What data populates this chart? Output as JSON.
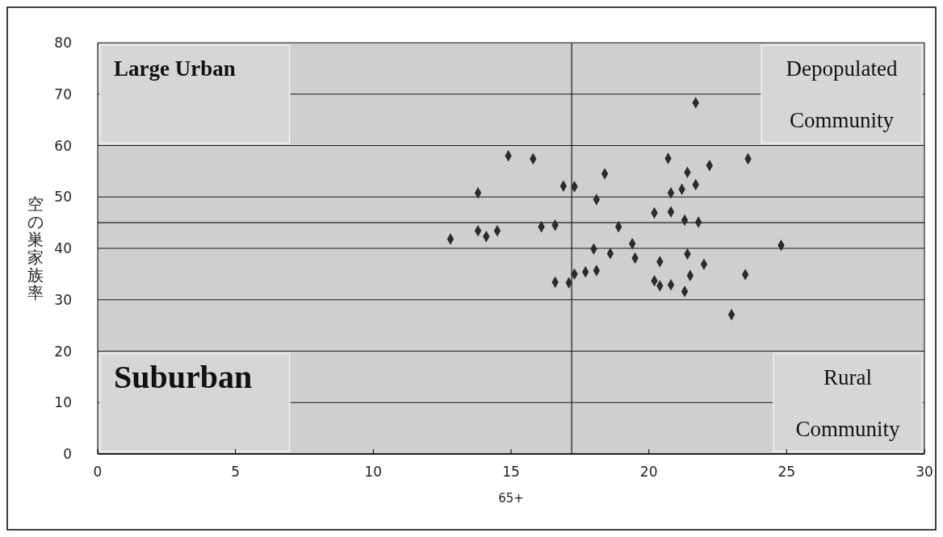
{
  "chart_data": {
    "type": "scatter",
    "xlabel": "65+",
    "ylabel": "空の巣家族率",
    "xlim": [
      0,
      30
    ],
    "xticks": [
      0,
      5,
      10,
      15,
      20,
      25,
      30
    ],
    "ylim": [
      0,
      80
    ],
    "yticks": [
      0,
      10,
      20,
      30,
      40,
      50,
      60,
      70,
      80
    ],
    "grid": "y",
    "marker": "diamond",
    "ref_lines": [
      {
        "axis": "x",
        "value": 17.2,
        "color": "#1a1a1a"
      },
      {
        "axis": "y",
        "value": 45,
        "color": "#1a1a1a"
      }
    ],
    "annotations": [
      "Large Urban",
      "Depopulated Community",
      "Suburban",
      "Rural Community"
    ],
    "series": [
      {
        "color": "#2b2b2b",
        "x": [
          21.7,
          20.7,
          23.6,
          22.2,
          21.4,
          21.7,
          21.2,
          20.8,
          20.2,
          20.8,
          21.3,
          21.8,
          19.4,
          24.8,
          19.5,
          20.4,
          21.4,
          22.0,
          23.5,
          21.5,
          20.2,
          20.4,
          20.8,
          21.3,
          23.0,
          14.9,
          15.8,
          18.4,
          16.9,
          17.3,
          13.8,
          18.1,
          16.1,
          16.6,
          18.9,
          13.8,
          14.5,
          14.1,
          12.8,
          18.0,
          18.6,
          17.3,
          17.7,
          18.1,
          16.6,
          17.1
        ],
        "values": [
          68.3,
          57.5,
          57.4,
          56.1,
          54.8,
          52.4,
          51.5,
          50.8,
          46.9,
          47.1,
          45.5,
          45.1,
          40.9,
          40.6,
          38.1,
          37.4,
          38.9,
          36.9,
          34.9,
          34.7,
          33.7,
          32.7,
          32.9,
          31.6,
          27.1,
          58.0,
          57.4,
          54.5,
          52.1,
          52.0,
          50.8,
          49.5,
          44.2,
          44.5,
          44.2,
          43.4,
          43.4,
          42.3,
          41.8,
          39.9,
          39.0,
          35.0,
          35.4,
          35.7,
          33.4,
          33.3
        ]
      }
    ]
  }
}
